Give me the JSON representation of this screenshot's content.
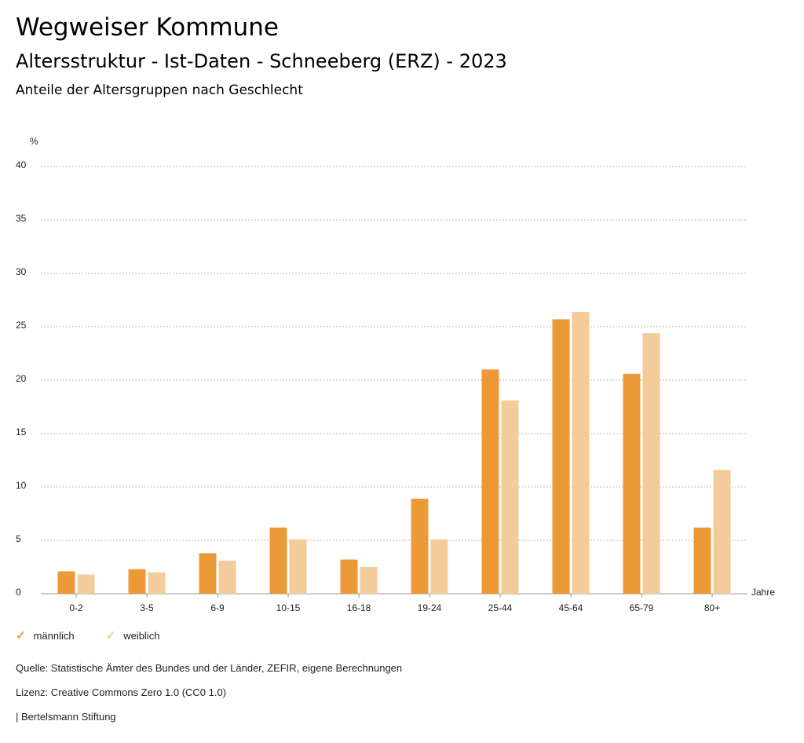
{
  "header": {
    "title": "Wegweiser Kommune",
    "subtitle": "Altersstruktur - Ist-Daten - Schneeberg (ERZ) - 2023",
    "subsubtitle": "Anteile der Altersgruppen nach Geschlecht"
  },
  "colors": {
    "male": "#ec9a38",
    "female": "#f4cb9a",
    "grid": "#bbbbbb"
  },
  "chart_data": {
    "type": "bar",
    "ylabel": "%",
    "xlabel": "Jahre",
    "ylim": [
      0,
      40
    ],
    "yticks": [
      0,
      5,
      10,
      15,
      20,
      25,
      30,
      35,
      40
    ],
    "grid": true,
    "categories": [
      "0-2",
      "3-5",
      "6-9",
      "10-15",
      "16-18",
      "19-24",
      "25-44",
      "45-64",
      "65-79",
      "80+"
    ],
    "series": [
      {
        "name": "männlich",
        "values": [
          2.1,
          2.3,
          3.8,
          6.2,
          3.2,
          8.9,
          21.0,
          25.7,
          20.6,
          6.2
        ]
      },
      {
        "name": "weiblich",
        "values": [
          1.8,
          2.0,
          3.1,
          5.1,
          2.5,
          5.1,
          18.1,
          26.4,
          24.4,
          11.6
        ]
      }
    ],
    "legend": [
      "männlich",
      "weiblich"
    ]
  },
  "footer": {
    "source": "Quelle: Statistische Ämter des Bundes und der Länder, ZEFIR, eigene Berechnungen",
    "license": "Lizenz: Creative Commons Zero 1.0 (CC0 1.0)",
    "publisher": "| Bertelsmann Stiftung"
  }
}
